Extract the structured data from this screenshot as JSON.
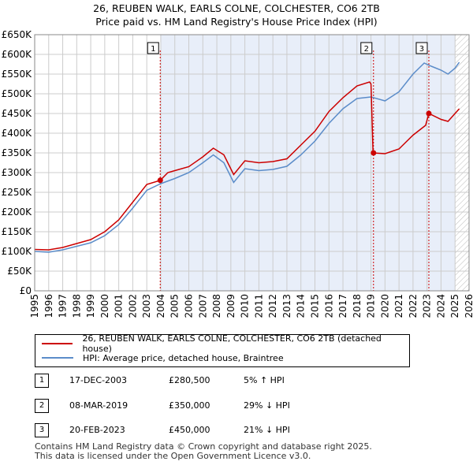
{
  "title_line1": "26, REUBEN WALK, EARLS COLNE, COLCHESTER, CO6 2TB",
  "title_line2": "Price paid vs. HM Land Registry's House Price Index (HPI)",
  "colors": {
    "red": "#cc0000",
    "blue": "#5b8cc9",
    "shade": "#e8eef9",
    "grid": "#cccccc"
  },
  "chart_data": {
    "type": "line",
    "xlim": [
      1995,
      2026
    ],
    "ylim": [
      0,
      650000
    ],
    "y_ticks": [
      {
        "value": 0,
        "label": "£0"
      },
      {
        "value": 50000,
        "label": "£50K"
      },
      {
        "value": 100000,
        "label": "£100K"
      },
      {
        "value": 150000,
        "label": "£150K"
      },
      {
        "value": 200000,
        "label": "£200K"
      },
      {
        "value": 250000,
        "label": "£250K"
      },
      {
        "value": 300000,
        "label": "£300K"
      },
      {
        "value": 350000,
        "label": "£350K"
      },
      {
        "value": 400000,
        "label": "£400K"
      },
      {
        "value": 450000,
        "label": "£450K"
      },
      {
        "value": 500000,
        "label": "£500K"
      },
      {
        "value": 550000,
        "label": "£550K"
      },
      {
        "value": 600000,
        "label": "£600K"
      },
      {
        "value": 650000,
        "label": "£650K"
      }
    ],
    "x_ticks": [
      "1995",
      "1996",
      "1997",
      "1998",
      "1999",
      "2000",
      "2001",
      "2002",
      "2003",
      "2004",
      "2005",
      "2006",
      "2007",
      "2008",
      "2009",
      "2010",
      "2011",
      "2012",
      "2013",
      "2014",
      "2015",
      "2016",
      "2017",
      "2018",
      "2019",
      "2020",
      "2021",
      "2022",
      "2023",
      "2024",
      "2025",
      "2026"
    ],
    "shaded_from": 2003.96,
    "hatch_from": 2025.0,
    "series": [
      {
        "name": "26, REUBEN WALK, EARLS COLNE, COLCHESTER, CO6 2TB (detached house)",
        "color": "#cc0000",
        "points": [
          [
            1995,
            105000
          ],
          [
            1996,
            104000
          ],
          [
            1997,
            110000
          ],
          [
            1998,
            120000
          ],
          [
            1999,
            130000
          ],
          [
            2000,
            150000
          ],
          [
            2001,
            180000
          ],
          [
            2002,
            225000
          ],
          [
            2003,
            270000
          ],
          [
            2003.96,
            280500
          ],
          [
            2004.5,
            300000
          ],
          [
            2005,
            305000
          ],
          [
            2006,
            315000
          ],
          [
            2007,
            340000
          ],
          [
            2007.75,
            362000
          ],
          [
            2008.5,
            345000
          ],
          [
            2009.2,
            295000
          ],
          [
            2010,
            330000
          ],
          [
            2011,
            325000
          ],
          [
            2012,
            328000
          ],
          [
            2013,
            335000
          ],
          [
            2014,
            370000
          ],
          [
            2015,
            405000
          ],
          [
            2016,
            455000
          ],
          [
            2017,
            490000
          ],
          [
            2018,
            520000
          ],
          [
            2018.9,
            530000
          ],
          [
            2019.0,
            525000
          ],
          [
            2019.15,
            350000
          ],
          [
            2020,
            348000
          ],
          [
            2021,
            360000
          ],
          [
            2022,
            395000
          ],
          [
            2022.9,
            420000
          ],
          [
            2023.13,
            450000
          ],
          [
            2024,
            435000
          ],
          [
            2024.5,
            430000
          ],
          [
            2025.0,
            450000
          ],
          [
            2025.3,
            462000
          ]
        ]
      },
      {
        "name": "HPI: Average price, detached house, Braintree",
        "color": "#5b8cc9",
        "points": [
          [
            1995,
            100000
          ],
          [
            1996,
            98000
          ],
          [
            1997,
            104000
          ],
          [
            1998,
            113000
          ],
          [
            1999,
            122000
          ],
          [
            2000,
            140000
          ],
          [
            2001,
            168000
          ],
          [
            2002,
            210000
          ],
          [
            2003,
            255000
          ],
          [
            2004,
            272000
          ],
          [
            2005,
            285000
          ],
          [
            2006,
            300000
          ],
          [
            2007,
            325000
          ],
          [
            2007.75,
            345000
          ],
          [
            2008.5,
            325000
          ],
          [
            2009.2,
            275000
          ],
          [
            2010,
            310000
          ],
          [
            2011,
            305000
          ],
          [
            2012,
            308000
          ],
          [
            2013,
            316000
          ],
          [
            2014,
            345000
          ],
          [
            2015,
            380000
          ],
          [
            2016,
            425000
          ],
          [
            2017,
            462000
          ],
          [
            2018,
            488000
          ],
          [
            2019,
            492000
          ],
          [
            2020,
            482000
          ],
          [
            2021,
            505000
          ],
          [
            2022,
            550000
          ],
          [
            2022.8,
            578000
          ],
          [
            2023.3,
            570000
          ],
          [
            2024,
            560000
          ],
          [
            2024.5,
            550000
          ],
          [
            2025.0,
            565000
          ],
          [
            2025.3,
            580000
          ]
        ]
      }
    ],
    "sales": [
      {
        "label": "1",
        "x": 2003.96,
        "price": 280500
      },
      {
        "label": "2",
        "x": 2019.18,
        "price": 350000
      },
      {
        "label": "3",
        "x": 2023.13,
        "price": 450000
      }
    ]
  },
  "legend": {
    "red_label": "26, REUBEN WALK, EARLS COLNE, COLCHESTER, CO6 2TB (detached house)",
    "blue_label": "HPI: Average price, detached house, Braintree"
  },
  "transactions": [
    {
      "num": "1",
      "date": "17-DEC-2003",
      "price": "£280,500",
      "hpi": "5% ↑ HPI"
    },
    {
      "num": "2",
      "date": "08-MAR-2019",
      "price": "£350,000",
      "hpi": "29% ↓ HPI"
    },
    {
      "num": "3",
      "date": "20-FEB-2023",
      "price": "£450,000",
      "hpi": "21% ↓ HPI"
    }
  ],
  "footer": {
    "line1": "Contains HM Land Registry data © Crown copyright and database right 2025.",
    "line2": "This data is licensed under the Open Government Licence v3.0."
  }
}
